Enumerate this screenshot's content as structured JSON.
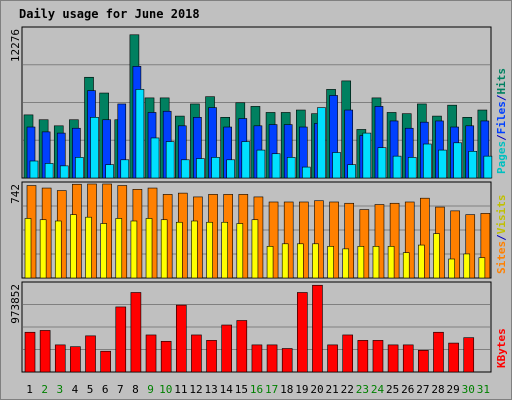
{
  "chart_data": {
    "title": "Daily usage for June 2018",
    "days": [
      "1",
      "2",
      "3",
      "4",
      "5",
      "6",
      "7",
      "8",
      "9",
      "10",
      "11",
      "12",
      "13",
      "14",
      "15",
      "16",
      "17",
      "18",
      "19",
      "20",
      "21",
      "22",
      "23",
      "24",
      "25",
      "26",
      "27",
      "28",
      "29",
      "30",
      "31"
    ],
    "weekend_days": [
      "2",
      "3",
      "9",
      "10",
      "16",
      "17",
      "23",
      "24",
      "30",
      "31"
    ],
    "colors": {
      "background": "#c0c0c0",
      "panel_border": "#808080",
      "title": "#0000c0",
      "label_blue": "#0000c0",
      "day_normal": "#000000",
      "day_weekend": "#008000",
      "gridline": "#808080",
      "hits": "#008060",
      "files": "#0040ff",
      "pages": "#00e0ff",
      "visits": "#ffff00",
      "sites": "#ff8000",
      "kbytes": "#ff0000"
    },
    "panels": [
      {
        "id": "hits_files_pages",
        "type": "bar",
        "ymax_label": "12276",
        "ylim": [
          0,
          12276
        ],
        "side_labels": [
          {
            "text": "Pages",
            "color": "#00c0c0"
          },
          {
            "text": "/",
            "color": "#0000c0"
          },
          {
            "text": "Files",
            "color": "#0040ff"
          },
          {
            "text": "/",
            "color": "#0000c0"
          },
          {
            "text": "Hits",
            "color": "#008060"
          }
        ],
        "series": [
          {
            "name": "Hits",
            "color": "#008060",
            "values": [
              5200,
              4800,
              4300,
              4800,
              8300,
              7000,
              4800,
              11800,
              6600,
              6600,
              5100,
              6100,
              6700,
              5000,
              6200,
              5900,
              5400,
              5400,
              5600,
              5300,
              7300,
              8000,
              4000,
              6600,
              5400,
              5300,
              6100,
              5100,
              6000,
              5000,
              5600
            ]
          },
          {
            "name": "Files",
            "color": "#0040ff",
            "values": [
              4200,
              3800,
              3700,
              4100,
              7200,
              4800,
              6100,
              9200,
              5400,
              5500,
              4300,
              5000,
              5800,
              4200,
              4900,
              4300,
              4400,
              4400,
              4200,
              4500,
              6800,
              5600,
              3500,
              5900,
              4700,
              4100,
              4600,
              4700,
              4200,
              4300,
              4700
            ]
          },
          {
            "name": "Pages",
            "color": "#00e0ff",
            "values": [
              1400,
              1200,
              1000,
              1700,
              5000,
              1100,
              1500,
              7300,
              3300,
              3000,
              1500,
              1600,
              1700,
              1500,
              3000,
              2300,
              2000,
              1700,
              900,
              5800,
              2100,
              1100,
              3700,
              2500,
              1800,
              1700,
              2800,
              2300,
              2900,
              2200,
              1800
            ]
          }
        ]
      },
      {
        "id": "sites_visits",
        "type": "bar",
        "ymax_label": "742",
        "ylim": [
          0,
          742
        ],
        "side_labels": [
          {
            "text": "Sites",
            "color": "#ff8000"
          },
          {
            "text": "/",
            "color": "#0000c0"
          },
          {
            "text": "Visits",
            "color": "#c0c000"
          }
        ],
        "series": [
          {
            "name": "Visits",
            "color": "#ffff00",
            "values": [
              470,
              460,
              450,
              500,
              480,
              430,
              470,
              450,
              470,
              460,
              440,
              450,
              440,
              440,
              430,
              460,
              250,
              270,
              270,
              270,
              250,
              230,
              250,
              250,
              250,
              200,
              260,
              350,
              150,
              190,
              160
            ]
          },
          {
            "name": "Sites",
            "color": "#ff8000",
            "values": [
              730,
              710,
              690,
              740,
              760,
              760,
              730,
              700,
              710,
              660,
              670,
              640,
              660,
              660,
              660,
              640,
              600,
              600,
              600,
              610,
              600,
              590,
              540,
              580,
              590,
              600,
              630,
              560,
              530,
              500,
              510
            ]
          }
        ]
      },
      {
        "id": "kbytes",
        "type": "bar",
        "ymax_label": "973852",
        "ylim": [
          0,
          973852
        ],
        "side_labels": [
          {
            "text": "KBytes",
            "color": "#ff0000"
          }
        ],
        "series": [
          {
            "name": "KBytes",
            "color": "#ff0000",
            "values": [
              440000,
              460000,
              300000,
              280000,
              400000,
              230000,
              720000,
              880000,
              410000,
              340000,
              740000,
              410000,
              350000,
              520000,
              570000,
              300000,
              300000,
              260000,
              880000,
              960000,
              300000,
              410000,
              350000,
              350000,
              300000,
              300000,
              240000,
              440000,
              320000,
              380000,
              0
            ]
          }
        ]
      }
    ]
  }
}
